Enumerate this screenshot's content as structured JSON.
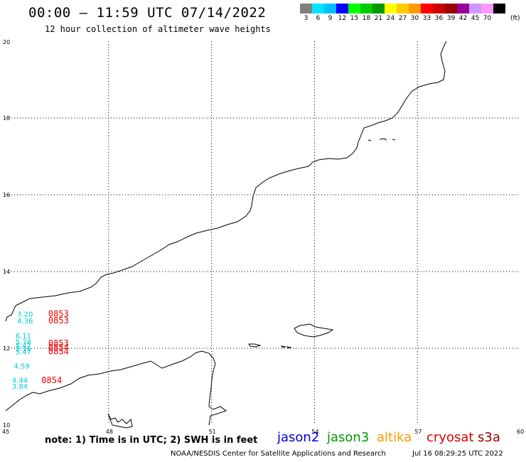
{
  "header": {
    "title": "00:00 – 11:59 UTC 07/14/2022",
    "subtitle": "12 hour collection of altimeter wave heights"
  },
  "color_scale": {
    "unit": "(ft)",
    "colors": [
      "#808080",
      "#00e5ff",
      "#00bfff",
      "#0000ff",
      "#00ff00",
      "#00cc00",
      "#009900",
      "#ffff00",
      "#ffcc00",
      "#ff9900",
      "#ff0000",
      "#cc0000",
      "#990000",
      "#990099",
      "#cc99ff",
      "#ff99ff",
      "#000000"
    ],
    "labels": [
      "3",
      "6",
      "9",
      "12",
      "15",
      "18",
      "21",
      "24",
      "27",
      "30",
      "33",
      "36",
      "39",
      "42",
      "45",
      "70",
      ""
    ]
  },
  "axes": {
    "lat_labels": [
      "20",
      "18",
      "16",
      "14",
      "12",
      "10"
    ],
    "lon_labels": [
      "45",
      "48",
      "51",
      "54",
      "57",
      "60"
    ]
  },
  "wave_heights": [
    {
      "value": "3.20",
      "lon": 45.5,
      "lat": 12.9
    },
    {
      "value": "4.36",
      "lon": 45.5,
      "lat": 12.72
    },
    {
      "value": "6.11",
      "lon": 45.45,
      "lat": 12.33
    },
    {
      "value": "5.78",
      "lon": 45.45,
      "lat": 12.18
    },
    {
      "value": "5.47",
      "lon": 45.45,
      "lat": 12.08
    },
    {
      "value": "5.16",
      "lon": 45.45,
      "lat": 12.0
    },
    {
      "value": "5.47",
      "lon": 45.45,
      "lat": 11.92
    },
    {
      "value": "4.59",
      "lon": 45.4,
      "lat": 11.55
    },
    {
      "value": "4.44",
      "lon": 45.35,
      "lat": 11.18
    },
    {
      "value": "3.84",
      "lon": 45.35,
      "lat": 11.02
    }
  ],
  "pass_times": [
    {
      "value": "0853",
      "lon": 46.2,
      "lat": 12.9
    },
    {
      "value": "0853",
      "lon": 46.2,
      "lat": 12.72
    },
    {
      "value": "0853",
      "lon": 46.2,
      "lat": 12.13
    },
    {
      "value": "0854",
      "lon": 46.2,
      "lat": 12.02
    },
    {
      "value": "0854",
      "lon": 46.2,
      "lat": 11.92
    },
    {
      "value": "0854",
      "lon": 46.0,
      "lat": 11.17
    }
  ],
  "note": "note: 1) Time is in UTC; 2) SWH is in feet",
  "satellites": [
    {
      "name": "jason2",
      "color": "#0000dd"
    },
    {
      "name": "jason3",
      "color": "#009900"
    },
    {
      "name": "altika",
      "color": "#ff9900"
    },
    {
      "name": "cryosat",
      "color": "#dd0000"
    },
    {
      "name": "s3a",
      "color": "#990000"
    }
  ],
  "footer": {
    "credit": "NOAA/NESDIS Center for Satellite Applications and Research",
    "timestamp": "Jul 16 08:29:25 UTC 2022"
  }
}
